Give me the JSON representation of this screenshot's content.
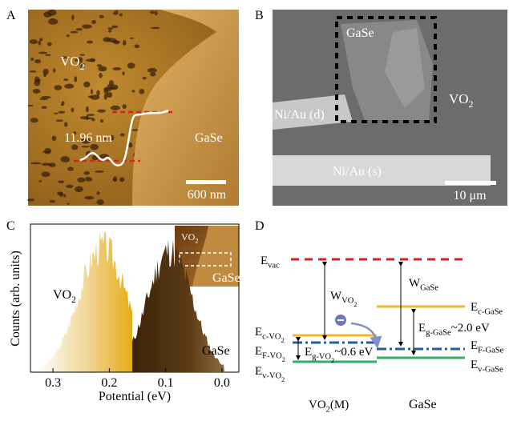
{
  "panel_a": {
    "label": "A",
    "region_vo2": {
      "text": "VO",
      "sub": "2"
    },
    "region_gase": "GaSe",
    "step_height": "11.96 nm",
    "scale_bar": "600 nm"
  },
  "panel_b": {
    "label": "B",
    "flake": "GaSe",
    "region_vo2": {
      "text": "VO",
      "sub": "2"
    },
    "drain": "Ni/Au (d)",
    "source": "Ni/Au (s)",
    "scale_bar": "10 μm"
  },
  "panel_c": {
    "label": "C",
    "type": "histogram",
    "x_label": "Potential (eV)",
    "y_label": "Counts (arb. units)",
    "xlim": [
      0.34,
      -0.03
    ],
    "xticks": [
      0.3,
      0.2,
      0.1,
      {
        "value": 0,
        "label": "0.0"
      }
    ],
    "series_vo2": {
      "text": "VO",
      "sub": "2"
    },
    "series_gase": "GaSe",
    "inset_vo2": {
      "text": "VO",
      "sub": "2"
    },
    "inset_gase": "GaSe"
  },
  "panel_d": {
    "label": "D",
    "e_vac": {
      "text": "E",
      "sub": "vac"
    },
    "w_vo2": {
      "text": "W",
      "sub": "VO",
      "subsub": "2"
    },
    "w_gase": {
      "text": "W",
      "sub": "GaSe"
    },
    "e_c_gase": {
      "text": "E",
      "sub": "c-GaSe"
    },
    "e_g_gase": {
      "text": "E",
      "sub": "g-GaSe",
      "tail": "~2.0 eV"
    },
    "e_c_vo2": {
      "text": "E",
      "sub": "c-VO",
      "subsub": "2"
    },
    "e_f_vo2": {
      "text": "E",
      "sub": "F-VO",
      "subsub": "2"
    },
    "e_g_vo2": {
      "text": "E",
      "sub": "g-VO",
      "subsub": "2",
      "tail": "~0.6 eV"
    },
    "e_v_vo2": {
      "text": "E",
      "sub": "v-VO",
      "subsub": "2"
    },
    "e_f_gase": {
      "text": "E",
      "sub": "F-GaSe"
    },
    "e_v_gase": {
      "text": "E",
      "sub": "v-GaSe"
    },
    "bottom_vo2": {
      "text": "VO",
      "sub": "2",
      "tail": "(M)"
    },
    "bottom_gase": "GaSe"
  }
}
